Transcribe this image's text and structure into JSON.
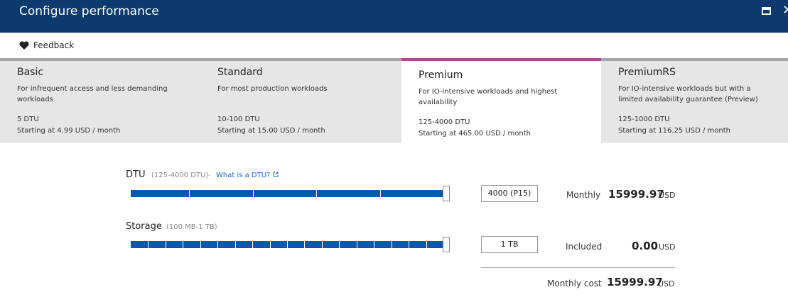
{
  "window": {
    "title": "Configure performance"
  },
  "toolbar": {
    "feedback_label": "Feedback"
  },
  "tiers": [
    {
      "name": "Basic",
      "description": "For infrequent access and less demanding workloads",
      "dtu": "5 DTU",
      "price": "Starting at 4.99 USD / month",
      "selected": false
    },
    {
      "name": "Standard",
      "description": "For most production workloads",
      "dtu": "10-100 DTU",
      "price": "Starting at 15.00 USD / month",
      "selected": false
    },
    {
      "name": "Premium",
      "description": "For IO-intensive workloads and highest availability",
      "dtu": "125-4000 DTU",
      "price": "Starting at 465.00 USD / month",
      "selected": true
    },
    {
      "name": "PremiumRS",
      "description": "For IO-intensive workloads but with a limited availability guarantee (Preview)",
      "dtu": "125-1000 DTU",
      "price": "Starting at 116.25 USD / month",
      "selected": false
    }
  ],
  "dtu": {
    "label": "DTU",
    "range": "(125-4000 DTU)",
    "separator": "-",
    "help_link": "What is a DTU?",
    "value": "4000 (P15)",
    "slider_fraction": 1.0,
    "price_label": "Monthly",
    "amount": "15999.97",
    "currency": "USD"
  },
  "storage": {
    "label": "Storage",
    "range": "(100 MB-1 TB)",
    "value": "1 TB",
    "slider_fraction": 1.0,
    "price_label": "Included",
    "amount": "0.00",
    "currency": "USD"
  },
  "total": {
    "label": "Monthly cost",
    "amount": "15999.97",
    "currency": "USD"
  },
  "colors": {
    "header": "#0a3a6e",
    "accent": "#9b4f96",
    "slider": "#0b57a8",
    "link": "#1e66b8"
  },
  "icons": {
    "feedback": "heart-icon",
    "maximize": "maximize-icon",
    "close": "close-icon",
    "external": "external-link-icon"
  }
}
